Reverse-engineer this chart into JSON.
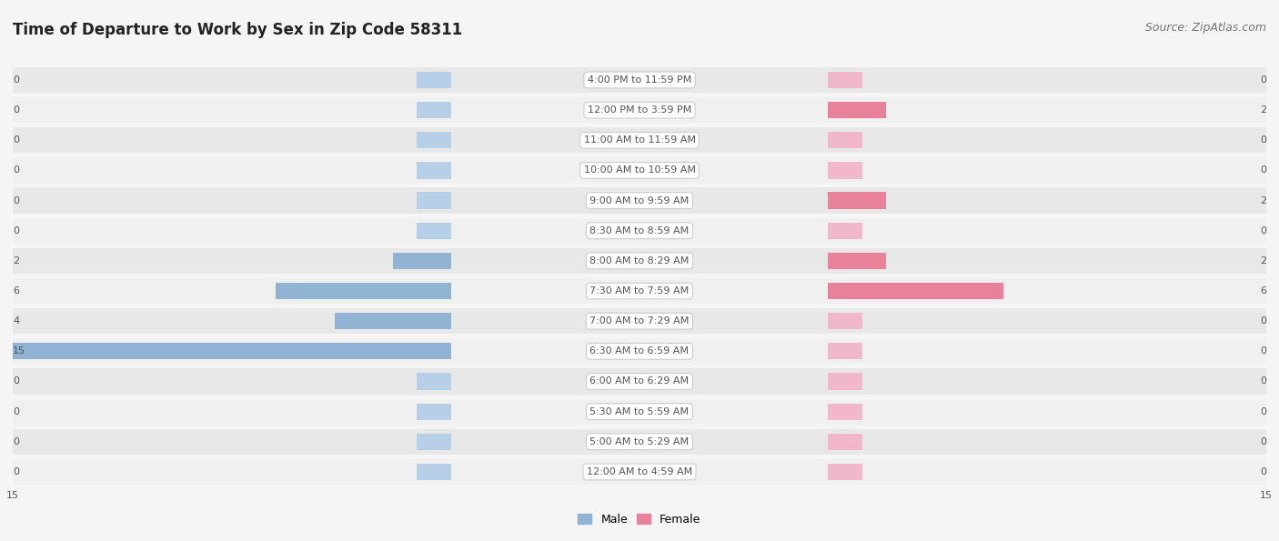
{
  "title": "Time of Departure to Work by Sex in Zip Code 58311",
  "source": "Source: ZipAtlas.com",
  "categories": [
    "12:00 AM to 4:59 AM",
    "5:00 AM to 5:29 AM",
    "5:30 AM to 5:59 AM",
    "6:00 AM to 6:29 AM",
    "6:30 AM to 6:59 AM",
    "7:00 AM to 7:29 AM",
    "7:30 AM to 7:59 AM",
    "8:00 AM to 8:29 AM",
    "8:30 AM to 8:59 AM",
    "9:00 AM to 9:59 AM",
    "10:00 AM to 10:59 AM",
    "11:00 AM to 11:59 AM",
    "12:00 PM to 3:59 PM",
    "4:00 PM to 11:59 PM"
  ],
  "male_values": [
    0,
    0,
    0,
    0,
    15,
    4,
    6,
    2,
    0,
    0,
    0,
    0,
    0,
    0
  ],
  "female_values": [
    0,
    0,
    0,
    0,
    0,
    0,
    6,
    2,
    0,
    2,
    0,
    0,
    2,
    0
  ],
  "male_color": "#92b4d4",
  "female_color": "#e8829a",
  "male_stub_color": "#b8cfe8",
  "female_stub_color": "#f0b8c8",
  "row_colors": [
    "#f0f0f0",
    "#e8e8e8"
  ],
  "label_color": "#555555",
  "value_color": "#555555",
  "axis_max": 15,
  "stub_val": 1.2,
  "background_color": "#f5f5f5",
  "title_fontsize": 12,
  "source_fontsize": 9,
  "cat_fontsize": 8,
  "value_fontsize": 8,
  "legend_fontsize": 9,
  "center_label_box_color": "white",
  "center_label_box_edge": "#cccccc"
}
